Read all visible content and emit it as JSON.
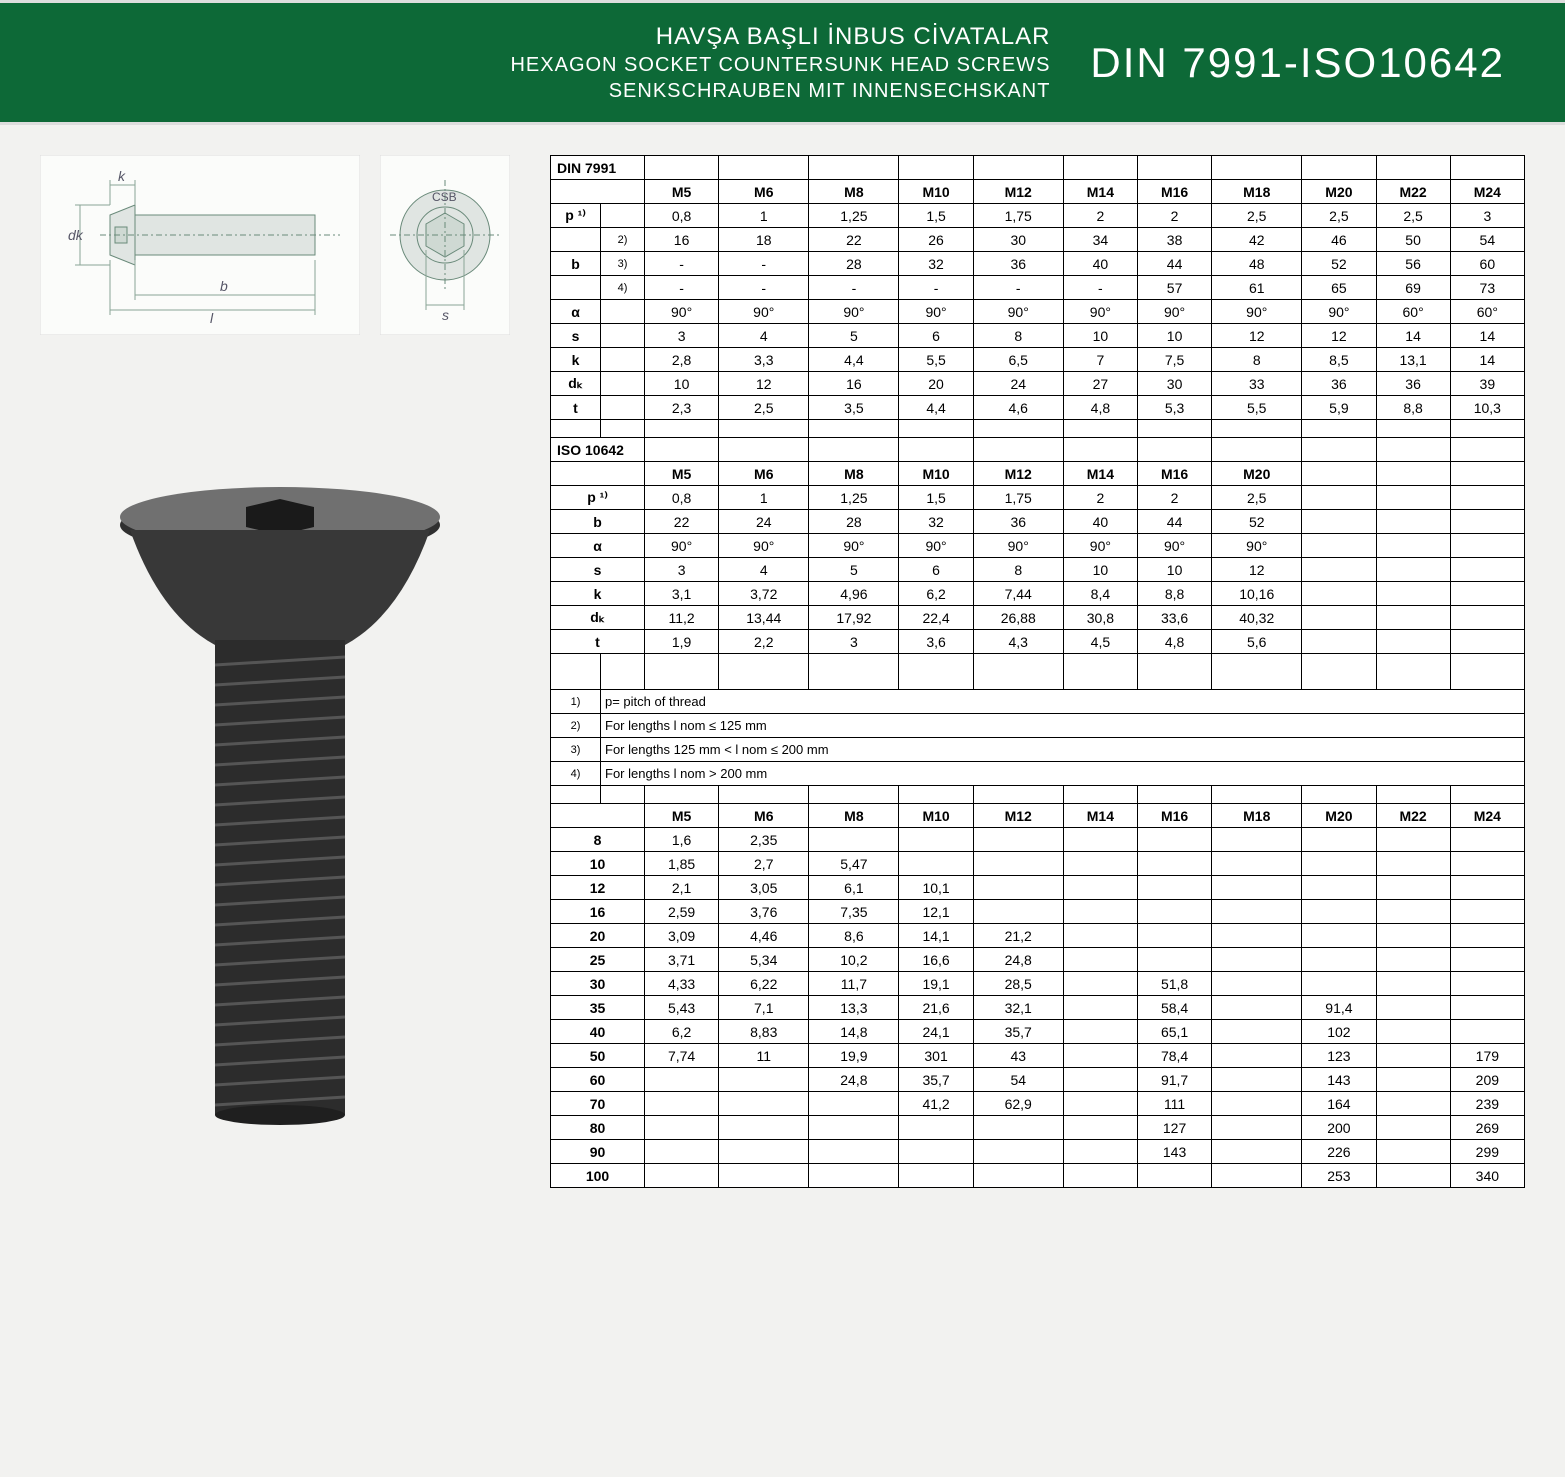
{
  "header": {
    "line1": "HAVŞA BAŞLI İNBUS CİVATALAR",
    "line2": "HEXAGON SOCKET COUNTERSUNK HEAD SCREWS",
    "line3": "SENKSCHRAUBEN MIT INNENSECHSKANT",
    "standard": "DIN 7991-ISO10642"
  },
  "diagram": {
    "labels": {
      "k": "k",
      "dk": "dk",
      "l": "l",
      "b": "b",
      "s": "s",
      "csb": "CSB"
    }
  },
  "tables": {
    "din7991": {
      "title": "DIN 7991",
      "sizes": [
        "M5",
        "M6",
        "M8",
        "M10",
        "M12",
        "M14",
        "M16",
        "M18",
        "M20",
        "M22",
        "M24"
      ],
      "rows": [
        {
          "param": "p ¹⁾",
          "sub": "",
          "vals": [
            "0,8",
            "1",
            "1,25",
            "1,5",
            "1,75",
            "2",
            "2",
            "2,5",
            "2,5",
            "2,5",
            "3"
          ]
        },
        {
          "param": "",
          "sub": "2)",
          "vals": [
            "16",
            "18",
            "22",
            "26",
            "30",
            "34",
            "38",
            "42",
            "46",
            "50",
            "54"
          ]
        },
        {
          "param": "b",
          "sub": "3)",
          "vals": [
            "-",
            "-",
            "28",
            "32",
            "36",
            "40",
            "44",
            "48",
            "52",
            "56",
            "60"
          ]
        },
        {
          "param": "",
          "sub": "4)",
          "vals": [
            "-",
            "-",
            "-",
            "-",
            "-",
            "-",
            "57",
            "61",
            "65",
            "69",
            "73"
          ]
        },
        {
          "param": "α",
          "sub": "",
          "vals": [
            "90°",
            "90°",
            "90°",
            "90°",
            "90°",
            "90°",
            "90°",
            "90°",
            "90°",
            "60°",
            "60°"
          ]
        },
        {
          "param": "s",
          "sub": "",
          "vals": [
            "3",
            "4",
            "5",
            "6",
            "8",
            "10",
            "10",
            "12",
            "12",
            "14",
            "14"
          ]
        },
        {
          "param": "k",
          "sub": "",
          "vals": [
            "2,8",
            "3,3",
            "4,4",
            "5,5",
            "6,5",
            "7",
            "7,5",
            "8",
            "8,5",
            "13,1",
            "14"
          ]
        },
        {
          "param": "dₖ",
          "sub": "",
          "vals": [
            "10",
            "12",
            "16",
            "20",
            "24",
            "27",
            "30",
            "33",
            "36",
            "36",
            "39"
          ]
        },
        {
          "param": "t",
          "sub": "",
          "vals": [
            "2,3",
            "2,5",
            "3,5",
            "4,4",
            "4,6",
            "4,8",
            "5,3",
            "5,5",
            "5,9",
            "8,8",
            "10,3"
          ]
        }
      ]
    },
    "iso10642": {
      "title": "ISO 10642",
      "sizes": [
        "M5",
        "M6",
        "M8",
        "M10",
        "M12",
        "M14",
        "M16",
        "M20"
      ],
      "rows": [
        {
          "param": "p ¹⁾",
          "vals": [
            "0,8",
            "1",
            "1,25",
            "1,5",
            "1,75",
            "2",
            "2",
            "2,5"
          ]
        },
        {
          "param": "b",
          "vals": [
            "22",
            "24",
            "28",
            "32",
            "36",
            "40",
            "44",
            "52"
          ]
        },
        {
          "param": "α",
          "vals": [
            "90°",
            "90°",
            "90°",
            "90°",
            "90°",
            "90°",
            "90°",
            "90°"
          ]
        },
        {
          "param": "s",
          "vals": [
            "3",
            "4",
            "5",
            "6",
            "8",
            "10",
            "10",
            "12"
          ]
        },
        {
          "param": "k",
          "vals": [
            "3,1",
            "3,72",
            "4,96",
            "6,2",
            "7,44",
            "8,4",
            "8,8",
            "10,16"
          ]
        },
        {
          "param": "dₖ",
          "vals": [
            "11,2",
            "13,44",
            "17,92",
            "22,4",
            "26,88",
            "30,8",
            "33,6",
            "40,32"
          ]
        },
        {
          "param": "t",
          "vals": [
            "1,9",
            "2,2",
            "3",
            "3,6",
            "4,3",
            "4,5",
            "4,8",
            "5,6"
          ]
        }
      ]
    },
    "notes": [
      {
        "n": "1)",
        "text": "p= pitch of thread"
      },
      {
        "n": "2)",
        "text": "For lengths l nom ≤ 125 mm"
      },
      {
        "n": "3)",
        "text": "For lengths 125 mm < l nom ≤ 200 mm"
      },
      {
        "n": "4)",
        "text": "For lengths l nom > 200 mm"
      }
    ],
    "weights": {
      "sizes": [
        "M5",
        "M6",
        "M8",
        "M10",
        "M12",
        "M14",
        "M16",
        "M18",
        "M20",
        "M22",
        "M24"
      ],
      "rows": [
        {
          "len": "8",
          "vals": [
            "1,6",
            "2,35",
            "",
            "",
            "",
            "",
            "",
            "",
            "",
            "",
            ""
          ]
        },
        {
          "len": "10",
          "vals": [
            "1,85",
            "2,7",
            "5,47",
            "",
            "",
            "",
            "",
            "",
            "",
            "",
            ""
          ]
        },
        {
          "len": "12",
          "vals": [
            "2,1",
            "3,05",
            "6,1",
            "10,1",
            "",
            "",
            "",
            "",
            "",
            "",
            ""
          ]
        },
        {
          "len": "16",
          "vals": [
            "2,59",
            "3,76",
            "7,35",
            "12,1",
            "",
            "",
            "",
            "",
            "",
            "",
            ""
          ]
        },
        {
          "len": "20",
          "vals": [
            "3,09",
            "4,46",
            "8,6",
            "14,1",
            "21,2",
            "",
            "",
            "",
            "",
            "",
            ""
          ]
        },
        {
          "len": "25",
          "vals": [
            "3,71",
            "5,34",
            "10,2",
            "16,6",
            "24,8",
            "",
            "",
            "",
            "",
            "",
            ""
          ]
        },
        {
          "len": "30",
          "vals": [
            "4,33",
            "6,22",
            "11,7",
            "19,1",
            "28,5",
            "",
            "51,8",
            "",
            "",
            "",
            ""
          ]
        },
        {
          "len": "35",
          "vals": [
            "5,43",
            "7,1",
            "13,3",
            "21,6",
            "32,1",
            "",
            "58,4",
            "",
            "91,4",
            "",
            ""
          ]
        },
        {
          "len": "40",
          "vals": [
            "6,2",
            "8,83",
            "14,8",
            "24,1",
            "35,7",
            "",
            "65,1",
            "",
            "102",
            "",
            ""
          ]
        },
        {
          "len": "50",
          "vals": [
            "7,74",
            "11",
            "19,9",
            "301",
            "43",
            "",
            "78,4",
            "",
            "123",
            "",
            "179"
          ]
        },
        {
          "len": "60",
          "vals": [
            "",
            "",
            "24,8",
            "35,7",
            "54",
            "",
            "91,7",
            "",
            "143",
            "",
            "209"
          ]
        },
        {
          "len": "70",
          "vals": [
            "",
            "",
            "",
            "41,2",
            "62,9",
            "",
            "111",
            "",
            "164",
            "",
            "239"
          ]
        },
        {
          "len": "80",
          "vals": [
            "",
            "",
            "",
            "",
            "",
            "",
            "127",
            "",
            "200",
            "",
            "269"
          ]
        },
        {
          "len": "90",
          "vals": [
            "",
            "",
            "",
            "",
            "",
            "",
            "143",
            "",
            "226",
            "",
            "299"
          ]
        },
        {
          "len": "100",
          "vals": [
            "",
            "",
            "",
            "",
            "",
            "",
            "",
            "",
            "253",
            "",
            "340"
          ]
        }
      ]
    }
  },
  "colors": {
    "header_bg": "#0d6937",
    "header_text": "#ffffff",
    "page_bg": "#f2f2f0",
    "border": "#000000"
  }
}
